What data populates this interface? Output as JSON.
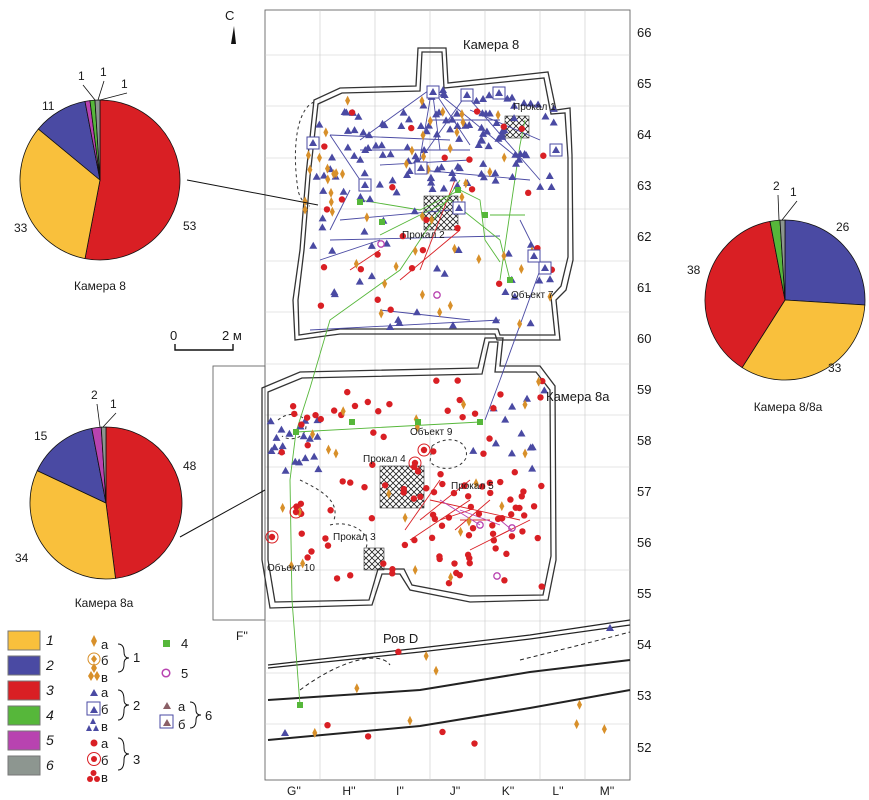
{
  "north_arrow": {
    "label": "С"
  },
  "scale_bar": {
    "start": "0",
    "end": "2 м"
  },
  "grid": {
    "rows": [
      "66",
      "65",
      "64",
      "63",
      "62",
      "61",
      "60",
      "59",
      "58",
      "57",
      "56",
      "55",
      "54",
      "53",
      "52"
    ],
    "cols": [
      "G''",
      "H''",
      "I''",
      "J''",
      "K''",
      "L''",
      "M''"
    ],
    "left_col": "F''"
  },
  "areas": {
    "chamber8": "Камера 8",
    "chamber8a": "Камера 8а",
    "ditch": "Ров D",
    "burn1": "Прокал 1",
    "burn2": "Прокал 2",
    "burn3": "Прокал 3",
    "burn4": "Прокал 4",
    "burn5": "Прокал 5",
    "obj7": "Объект 7",
    "obj9": "Объект 9",
    "obj10": "Объект 10"
  },
  "colors": {
    "yellow": "#f9c03c",
    "blue": "#4a4aa3",
    "red": "#d91f24",
    "green": "#56b73a",
    "magenta": "#b843b0",
    "gray": "#8d9690",
    "ochre": "#d8902a"
  },
  "chart_data": [
    {
      "type": "pie",
      "title": "Камера 8",
      "categories": [
        "1",
        "2",
        "3",
        "4",
        "5",
        "6"
      ],
      "values": [
        33,
        11,
        53,
        1,
        1,
        1
      ],
      "labels": [
        "33",
        "11",
        "53",
        "1",
        "1",
        "1"
      ]
    },
    {
      "type": "pie",
      "title": "Камера 8а",
      "categories": [
        "1",
        "2",
        "3",
        "4",
        "5",
        "6"
      ],
      "values": [
        34,
        15,
        48,
        0,
        2,
        1
      ],
      "labels": [
        "34",
        "15",
        "48",
        "",
        "2",
        "1"
      ]
    },
    {
      "type": "pie",
      "title": "Камера 8/8а",
      "categories": [
        "1",
        "2",
        "3",
        "4",
        "5",
        "6"
      ],
      "values": [
        33,
        26,
        38,
        2,
        0,
        1
      ],
      "labels": [
        "33",
        "26",
        "38",
        "2",
        "",
        "1"
      ]
    }
  ],
  "legend": {
    "swatches": [
      {
        "label": "1",
        "color": "#f9c03c"
      },
      {
        "label": "2",
        "color": "#4a4aa3"
      },
      {
        "label": "3",
        "color": "#d91f24"
      },
      {
        "label": "4",
        "color": "#56b73a"
      },
      {
        "label": "5",
        "color": "#b843b0"
      },
      {
        "label": "6",
        "color": "#8d9690"
      }
    ],
    "letters": {
      "a": "а",
      "b": "б",
      "v": "в"
    },
    "groups": {
      "g1": "1",
      "g2": "2",
      "g3": "3",
      "g4": "4",
      "g5": "5",
      "g6": "6"
    }
  }
}
